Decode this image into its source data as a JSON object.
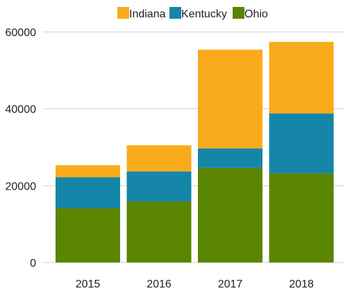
{
  "chart_data": {
    "type": "bar",
    "stacked": true,
    "categories": [
      "2015",
      "2016",
      "2017",
      "2018"
    ],
    "series": [
      {
        "name": "Ohio",
        "color": "#5a8500",
        "values": [
          14100,
          15900,
          24600,
          23200
        ]
      },
      {
        "name": "Kentucky",
        "color": "#1686a8",
        "values": [
          8100,
          7800,
          5100,
          15600
        ]
      },
      {
        "name": "Indiana",
        "color": "#faab1b",
        "values": [
          3100,
          6800,
          25700,
          18600
        ]
      }
    ],
    "legend_order": [
      "Indiana",
      "Kentucky",
      "Ohio"
    ],
    "legend_position": "top",
    "ylim": [
      0,
      60000
    ],
    "yticks": [
      "0",
      "20000",
      "40000",
      "60000"
    ],
    "ytick_values": [
      0,
      20000,
      40000,
      60000
    ],
    "grid": true,
    "title": "",
    "xlabel": "",
    "ylabel": ""
  }
}
